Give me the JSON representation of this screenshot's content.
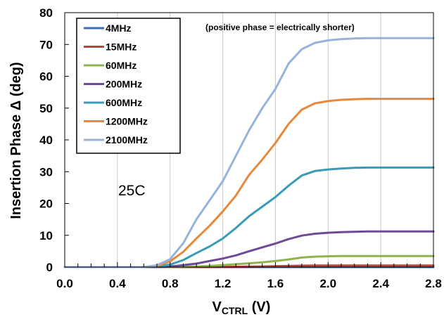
{
  "chart_data": {
    "type": "line",
    "ylabel": "Insertion Phase Δ (deg)",
    "xlabel_main": "V",
    "xlabel_sub": "CTRL",
    "xlabel_suffix": " (V)",
    "xlim": [
      0.0,
      2.8
    ],
    "ylim": [
      0,
      80
    ],
    "x_ticks": [
      "0.0",
      "0.4",
      "0.8",
      "1.2",
      "1.6",
      "2.0",
      "2.4",
      "2.8"
    ],
    "y_ticks": [
      "0",
      "10",
      "20",
      "30",
      "40",
      "50",
      "60",
      "70",
      "80"
    ],
    "grid": "vertical",
    "legend_position": "top-left",
    "annotation": "(positive phase = electrically shorter)",
    "temperature_label": "25C",
    "x": [
      0.0,
      0.1,
      0.2,
      0.3,
      0.4,
      0.5,
      0.6,
      0.7,
      0.8,
      0.9,
      1.0,
      1.1,
      1.2,
      1.3,
      1.4,
      1.5,
      1.6,
      1.7,
      1.8,
      1.9,
      2.0,
      2.1,
      2.2,
      2.3,
      2.4,
      2.5,
      2.6,
      2.7,
      2.8
    ],
    "series": [
      {
        "name": "4MHz",
        "color": "#3d6fb0",
        "values": [
          0,
          0,
          0,
          0,
          0,
          0,
          0,
          0,
          0,
          0,
          0,
          0,
          0,
          0,
          0,
          0,
          0,
          0,
          0,
          0,
          0,
          0,
          0,
          0,
          0,
          0,
          0,
          0,
          0
        ]
      },
      {
        "name": "15MHz",
        "color": "#b5463f",
        "values": [
          0,
          0,
          0,
          0,
          0,
          0,
          0,
          0,
          0,
          0,
          0,
          0,
          0.05,
          0.1,
          0.15,
          0.2,
          0.3,
          0.35,
          0.45,
          0.5,
          0.5,
          0.5,
          0.5,
          0.5,
          0.5,
          0.5,
          0.5,
          0.5,
          0.5
        ]
      },
      {
        "name": "60MHz",
        "color": "#8eb44c",
        "values": [
          0,
          0,
          0,
          0,
          0,
          0,
          0,
          0,
          0.05,
          0.1,
          0.2,
          0.35,
          0.6,
          0.9,
          1.2,
          1.5,
          1.9,
          2.4,
          3.0,
          3.3,
          3.4,
          3.5,
          3.5,
          3.5,
          3.5,
          3.5,
          3.5,
          3.5,
          3.5
        ]
      },
      {
        "name": "200MHz",
        "color": "#6f4a96",
        "values": [
          0,
          0,
          0,
          0,
          0,
          0,
          0,
          0,
          0.2,
          0.6,
          1.1,
          1.9,
          2.7,
          3.7,
          5.0,
          6.2,
          7.4,
          8.8,
          9.9,
          10.5,
          10.8,
          11.0,
          11.1,
          11.2,
          11.2,
          11.2,
          11.2,
          11.2,
          11.2
        ]
      },
      {
        "name": "600MHz",
        "color": "#3a9ab7",
        "values": [
          0,
          0,
          0,
          0,
          0,
          0,
          0,
          0.1,
          0.8,
          2.2,
          4.4,
          6.5,
          9.0,
          12.3,
          16.0,
          19.0,
          22.0,
          25.6,
          28.8,
          30.2,
          30.7,
          31.0,
          31.2,
          31.3,
          31.3,
          31.3,
          31.3,
          31.3,
          31.3
        ]
      },
      {
        "name": "1200MHz",
        "color": "#e8883a",
        "values": [
          0,
          0,
          0,
          0,
          0,
          0,
          0,
          0.3,
          1.8,
          4.8,
          9.0,
          13.0,
          17.5,
          22.5,
          29.0,
          33.8,
          39.0,
          45.0,
          49.5,
          51.5,
          52.2,
          52.6,
          52.8,
          52.9,
          52.9,
          52.9,
          52.9,
          52.9,
          52.9
        ]
      },
      {
        "name": "2100MHz",
        "color": "#97b3d9",
        "values": [
          0,
          0,
          0,
          0,
          0,
          0,
          0,
          0.6,
          2.5,
          7.5,
          15.0,
          21.0,
          27.0,
          35.0,
          43.0,
          50.0,
          56.0,
          64.0,
          68.5,
          70.5,
          71.3,
          71.7,
          71.9,
          72.0,
          72.0,
          72.0,
          72.0,
          72.0,
          72.0
        ]
      }
    ]
  }
}
